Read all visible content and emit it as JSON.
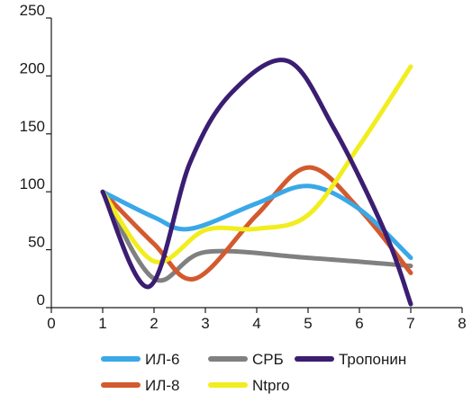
{
  "chart_data": {
    "type": "line",
    "xlim": [
      0,
      8
    ],
    "ylim": [
      0,
      250
    ],
    "x_ticks": [
      "0",
      "1",
      "2",
      "3",
      "4",
      "5",
      "6",
      "7",
      "8"
    ],
    "y_ticks": [
      "0",
      "50",
      "100",
      "150",
      "200",
      "250"
    ],
    "grid": false,
    "legend_position": "bottom",
    "series": [
      {
        "name": "ИЛ-6",
        "color": "#3aa8e8",
        "points": [
          [
            1,
            100
          ],
          [
            2,
            78
          ],
          [
            2.7,
            68
          ],
          [
            4,
            90
          ],
          [
            5,
            105
          ],
          [
            6,
            85
          ],
          [
            7,
            43
          ]
        ]
      },
      {
        "name": "СРБ",
        "color": "#808080",
        "points": [
          [
            1,
            100
          ],
          [
            2,
            25
          ],
          [
            3,
            48
          ],
          [
            5,
            43
          ],
          [
            7,
            36
          ]
        ]
      },
      {
        "name": "Тропонин",
        "color": "#3b1d72",
        "points": [
          [
            1,
            100
          ],
          [
            1.9,
            18
          ],
          [
            2.7,
            125
          ],
          [
            3.5,
            185
          ],
          [
            4.6,
            213
          ],
          [
            5.5,
            155
          ],
          [
            6.5,
            65
          ],
          [
            7,
            3
          ]
        ]
      },
      {
        "name": "ИЛ-8",
        "color": "#d35a2e",
        "points": [
          [
            1,
            100
          ],
          [
            2,
            55
          ],
          [
            2.8,
            25
          ],
          [
            4,
            80
          ],
          [
            5,
            121
          ],
          [
            6,
            85
          ],
          [
            7,
            30
          ]
        ]
      },
      {
        "name": "Ntpro",
        "color": "#f2ed1e",
        "points": [
          [
            1,
            100
          ],
          [
            2,
            40
          ],
          [
            3,
            67
          ],
          [
            4,
            68
          ],
          [
            5,
            80
          ],
          [
            6,
            140
          ],
          [
            7,
            208
          ]
        ]
      }
    ]
  }
}
